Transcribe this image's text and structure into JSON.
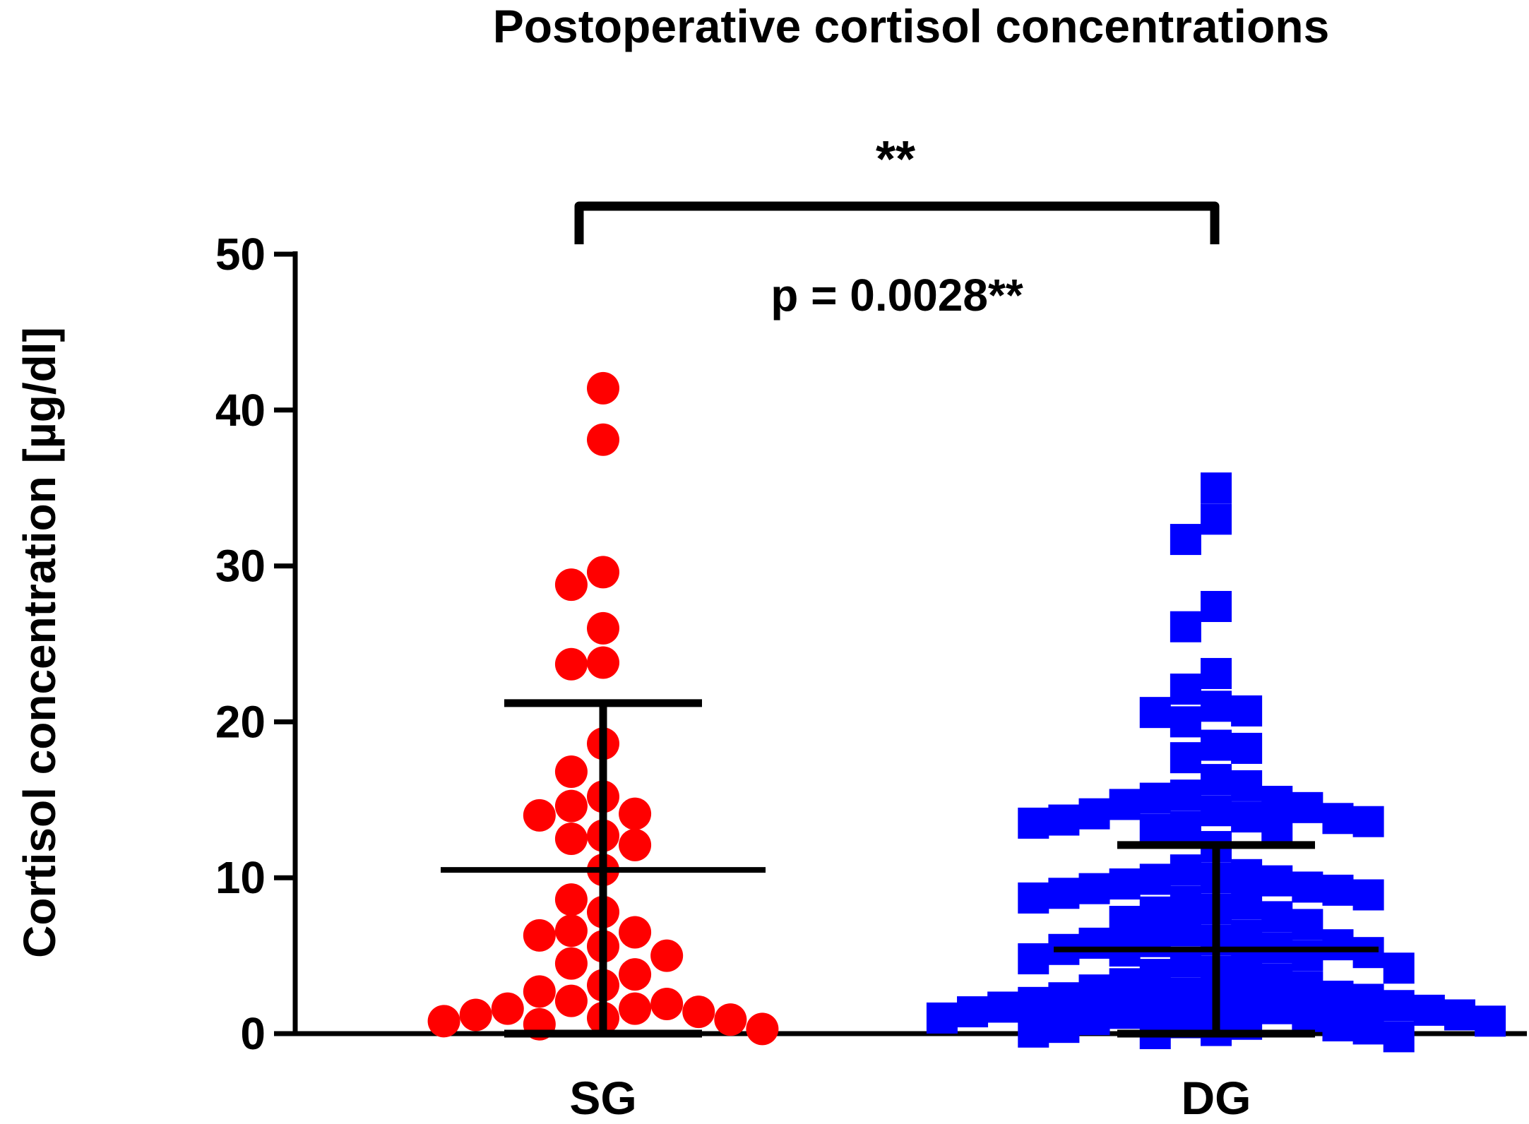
{
  "chart_data": {
    "type": "scatter",
    "title": "Postoperative cortisol concentrations",
    "xlabel": "",
    "ylabel": "Cortisol concentration [µg/dl]",
    "ylim": [
      0,
      50
    ],
    "yticks": [
      "0",
      "10",
      "20",
      "30",
      "40",
      "50"
    ],
    "categories": [
      "SG",
      "DG"
    ],
    "significance_label": "**",
    "p_value_label": "p = 0.0028**",
    "colors": {
      "SG": "#ff0000",
      "DG": "#0000ff",
      "axis": "#000000"
    },
    "series": [
      {
        "name": "SG",
        "marker": "circle",
        "mean": 10.5,
        "sd_upper": 21.2,
        "sd_lower": 0,
        "values": [
          41.4,
          38.1,
          29.6,
          28.8,
          26.0,
          23.7,
          23.8,
          18.6,
          16.8,
          15.2,
          14.6,
          14.0,
          14.1,
          12.7,
          12.5,
          12.1,
          10.5,
          8.6,
          7.8,
          6.6,
          6.3,
          6.5,
          5.6,
          5.0,
          4.5,
          3.8,
          3.1,
          2.7,
          2.1,
          1.9,
          1.6,
          1.6,
          1.4,
          1.2,
          1.0,
          0.9,
          0.8,
          0.6,
          0.3
        ]
      },
      {
        "name": "DG",
        "marker": "square",
        "mean": 5.4,
        "sd_upper": 12.1,
        "sd_lower": 0,
        "values": [
          35.0,
          33.0,
          31.7,
          27.4,
          26.1,
          23.1,
          22.1,
          21.0,
          20.7,
          20.6,
          20.0,
          18.5,
          18.3,
          17.7,
          16.3,
          15.9,
          15.3,
          15.1,
          14.9,
          14.7,
          14.5,
          14.3,
          14.1,
          13.9,
          13.8,
          13.7,
          13.6,
          13.5,
          13.3,
          13.1,
          13.0,
          12.0,
          10.5,
          10.2,
          10.0,
          9.9,
          9.8,
          9.6,
          9.4,
          9.3,
          9.2,
          9.0,
          8.9,
          8.7,
          8.5,
          8.3,
          8.0,
          7.8,
          7.5,
          7.2,
          7.0,
          6.6,
          6.3,
          6.0,
          5.9,
          5.8,
          5.7,
          5.5,
          5.4,
          5.3,
          5.2,
          5.0,
          4.8,
          4.6,
          4.4,
          4.2,
          4.0,
          3.8,
          3.5,
          3.2,
          3.0,
          2.8,
          2.6,
          2.5,
          2.4,
          2.3,
          2.2,
          2.1,
          2.0,
          1.9,
          1.8,
          1.7,
          1.6,
          1.5,
          1.4,
          1.3,
          1.2,
          1.1,
          1.0,
          0.9,
          0.8,
          0.7,
          0.6,
          0.5,
          0.4,
          0.3,
          0.2,
          0.1,
          0.0,
          -0.2
        ]
      }
    ]
  }
}
